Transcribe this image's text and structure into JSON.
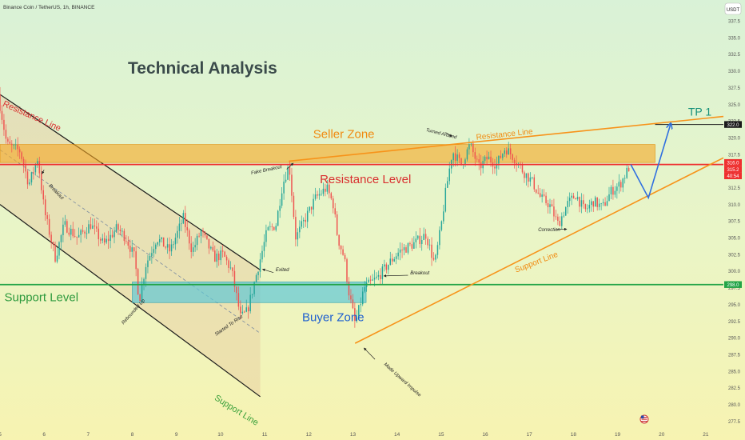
{
  "header": {
    "symbol_line": "Binance Coin / TetherUS, 1h, BINANCE",
    "currency_badge": "USDT"
  },
  "chart_data": {
    "type": "candlestick",
    "title": "Technical Analysis",
    "yaxis_ticks": [
      277.5,
      280.0,
      282.5,
      285.0,
      287.5,
      290.0,
      292.5,
      295.0,
      297.5,
      300.0,
      302.5,
      305.0,
      307.5,
      310.0,
      312.5,
      315.0,
      317.5,
      320.0,
      322.5,
      325.0,
      327.5,
      330.0,
      332.5,
      335.0,
      337.5
    ],
    "ylim": [
      276.5,
      338.5
    ],
    "xaxis_ticks": [
      {
        "label": "5",
        "day": 5
      },
      {
        "label": "6",
        "day": 6
      },
      {
        "label": "7",
        "day": 7
      },
      {
        "label": "8",
        "day": 8
      },
      {
        "label": "9",
        "day": 9
      },
      {
        "label": "10",
        "day": 10
      },
      {
        "label": "11",
        "day": 11
      },
      {
        "label": "12",
        "day": 12
      },
      {
        "label": "13",
        "day": 13
      },
      {
        "label": "14",
        "day": 14
      },
      {
        "label": "15",
        "day": 15
      },
      {
        "label": "16",
        "day": 16
      },
      {
        "label": "17",
        "day": 17
      },
      {
        "label": "18",
        "day": 18
      },
      {
        "label": "19",
        "day": 19
      },
      {
        "label": "20",
        "day": 20
      },
      {
        "label": "21",
        "day": 21
      }
    ],
    "xlim": [
      5,
      21.4
    ],
    "candle_path_keypoints": [
      [
        5.0,
        326.5
      ],
      [
        5.2,
        319.0
      ],
      [
        5.5,
        318.0
      ],
      [
        5.7,
        313.0
      ],
      [
        5.9,
        317.0
      ],
      [
        6.05,
        309.0
      ],
      [
        6.3,
        302.0
      ],
      [
        6.5,
        307.0
      ],
      [
        6.8,
        305.0
      ],
      [
        7.1,
        307.0
      ],
      [
        7.4,
        304.0
      ],
      [
        7.7,
        306.5
      ],
      [
        7.9,
        305.0
      ],
      [
        8.1,
        302.0
      ],
      [
        8.2,
        295.5
      ],
      [
        8.35,
        301.0
      ],
      [
        8.6,
        305.0
      ],
      [
        8.9,
        303.0
      ],
      [
        9.2,
        308.0
      ],
      [
        9.4,
        303.0
      ],
      [
        9.6,
        306.0
      ],
      [
        9.9,
        302.0
      ],
      [
        10.1,
        302.5
      ],
      [
        10.3,
        300.0
      ],
      [
        10.5,
        293.0
      ],
      [
        10.65,
        294.0
      ],
      [
        10.8,
        298.0
      ],
      [
        10.95,
        302.0
      ],
      [
        11.1,
        306.0
      ],
      [
        11.3,
        307.0
      ],
      [
        11.45,
        313.0
      ],
      [
        11.6,
        316.0
      ],
      [
        11.75,
        305.0
      ],
      [
        11.9,
        307.0
      ],
      [
        12.2,
        311.0
      ],
      [
        12.45,
        312.5
      ],
      [
        12.6,
        310.0
      ],
      [
        12.7,
        305.0
      ],
      [
        12.85,
        302.0
      ],
      [
        12.95,
        297.0
      ],
      [
        13.1,
        292.0
      ],
      [
        13.3,
        297.5
      ],
      [
        13.6,
        299.0
      ],
      [
        13.9,
        301.5
      ],
      [
        14.1,
        303.0
      ],
      [
        14.4,
        304.0
      ],
      [
        14.7,
        305.5
      ],
      [
        14.9,
        301.0
      ],
      [
        15.05,
        307.0
      ],
      [
        15.15,
        312.0
      ],
      [
        15.3,
        318.0
      ],
      [
        15.5,
        316.0
      ],
      [
        15.7,
        319.0
      ],
      [
        15.9,
        315.5
      ],
      [
        16.1,
        317.0
      ],
      [
        16.3,
        316.0
      ],
      [
        16.5,
        318.5
      ],
      [
        16.7,
        317.0
      ],
      [
        16.9,
        315.0
      ],
      [
        17.1,
        313.5
      ],
      [
        17.3,
        311.0
      ],
      [
        17.5,
        310.0
      ],
      [
        17.7,
        307.0
      ],
      [
        17.9,
        310.0
      ],
      [
        18.1,
        311.5
      ],
      [
        18.3,
        309.0
      ],
      [
        18.5,
        310.5
      ],
      [
        18.7,
        309.5
      ],
      [
        18.9,
        312.0
      ],
      [
        19.1,
        313.0
      ],
      [
        19.3,
        315.5
      ]
    ],
    "price_labels": [
      {
        "label": "322.0",
        "price": 322.0,
        "color": "#1a1a1a"
      },
      {
        "label": "316.0",
        "price": 316.3,
        "color": "#ef2f2f"
      },
      {
        "label": "315.2",
        "price": 315.3,
        "color": "#ef2f2f"
      },
      {
        "label": "40:54",
        "price": 314.3,
        "color": "#ef2f2f"
      },
      {
        "label": "298.0",
        "price": 298.0,
        "color": "#22a447"
      }
    ],
    "levels": {
      "resistance": 316.0,
      "support": 298.0,
      "target": 322.0
    },
    "zones": {
      "seller": {
        "label": "Seller Zone",
        "day_from": 5.0,
        "day_to": 19.85,
        "low": 316.3,
        "high": 319.0
      },
      "buyer": {
        "label": "Buyer Zone",
        "day_from": 8.0,
        "day_to": 13.3,
        "low": 295.3,
        "high": 298.4
      }
    },
    "labels": {
      "resistance_line_left": "Resistance Line",
      "support_line_left": "Support Line",
      "resistance_level": "Resistance Level",
      "support_level": "Support Level",
      "resistance_line_right": "Resistance Line",
      "support_line_right": "Support Line",
      "tp1": "TP 1"
    },
    "annotations": [
      {
        "text": "Breakout",
        "day": 6.1,
        "price": 312.8,
        "rot": 46
      },
      {
        "text": "Fake Breakout",
        "day": 10.7,
        "price": 314.5,
        "rot": -12
      },
      {
        "text": "Exited",
        "day": 11.25,
        "price": 300.0,
        "rot": 0
      },
      {
        "text": "Rebounded Up",
        "day": 7.8,
        "price": 292.0,
        "rot": -48
      },
      {
        "text": "Started To Rise",
        "day": 9.9,
        "price": 290.3,
        "rot": -35
      },
      {
        "text": "Breakout",
        "day": 14.3,
        "price": 299.5,
        "rot": 0
      },
      {
        "text": "Made Upward Impulse",
        "day": 13.7,
        "price": 286.0,
        "rot": 42
      },
      {
        "text": "Turned Around",
        "day": 14.65,
        "price": 321.0,
        "rot": 14
      },
      {
        "text": "Correction",
        "day": 17.2,
        "price": 306.0,
        "rot": 0
      }
    ],
    "colors": {
      "bull": "#26a69a",
      "bear": "#ef5350",
      "resistance": "#ef2f2f",
      "support": "#22a447",
      "orange": "#f7931a",
      "projection": "#2f6fe0"
    }
  }
}
